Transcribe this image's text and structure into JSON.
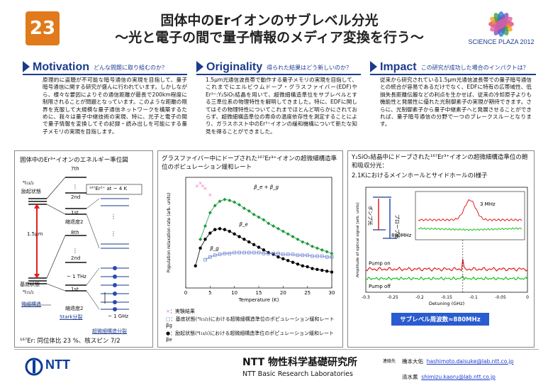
{
  "header": {
    "number": "23",
    "title_line1": "固体中のErイオンのサブレベル分光",
    "title_line2": "～光と電子の間で量子情報のメディア変換を行う～",
    "logo_text": "SCIENCE PLAZA 2012"
  },
  "sections": [
    {
      "heading": "Motivation",
      "question": "どんな問題に取り組むのか？",
      "body": "原理的に盗聴が不可能な暗号通信の実現を目指して、量子暗号通信に関する研究が盛んに行われています。しかしながら、様々な要因によりその通信距離が最長で200km程度に制限されることが問題となっています。このような距離の限界を克服して大規模な量子通信ネットワークを構築するために、我々は量子中継技術の実現、特に、光子と電子の間で量子情報を変換してその記録・読み出しを可能にする量子メモリの実現を目指します。"
    },
    {
      "heading": "Originality",
      "question": "得られた結果はどう新しいのか？",
      "body": "1.5μm光通信波長帯で動作する量子メモリの実現を目指して、これまでにエルビウムドープ・グラスファイバー(EDF)やEr³⁺:Y₂SiO₅結晶を用いて、超微細構造準位をサブレベルとする三準位系の物理特性を解明してきました。特に、EDFに関してはその物理特性についてこれまでほとんど明らかにされておらず、超微細構造準位の寿命の温度依存性を測定することにより、ガラスホスト中のEr³⁺イオンの緩和機構について新たな知見を得ることができました。"
    },
    {
      "heading": "Impact",
      "question": "この研究が成功した場合のインパクトは？",
      "body": "従来から研究されている1.5μm光通信波長帯での量子暗号通信との統合が容易であるだけでなく、EDFに特有の広帯域性、低損失長距離伝搬などの利点を生かせば、従来の冷却原子よりも機能性と発展性に優れた光制御素子の実現が期待できます。さらに、光制御素子から量子中継素子へと発展させることができれば、量子暗号通信の分野で一つのブレークスルーとなります。"
    }
  ],
  "panel_left": {
    "title": "固体中のEr³⁺イオンのエネルギー準位図",
    "labels": {
      "term_excited": "⁴I₁₃/₂",
      "excited": "励起状態",
      "wavelength": "1.5μm",
      "ground": "基底状態",
      "term_ground": "⁴I₁₅/₂",
      "fine": "微細構造",
      "l7th_top": "7th",
      "l2nd_top": "2nd",
      "l1st_top": "1st",
      "degen1": "縮退度2",
      "l8th": "8th",
      "l2nd_bot": "2nd",
      "thz": "~ 1 THz",
      "l1st_bot": "1st",
      "degen2": "縮退度2",
      "stark": "Stark分裂",
      "ghz": "~ 1 GHz",
      "isotope": "¹⁶⁷Er³⁺ at ~ 4 K",
      "hyperfine": "超微細構造分裂"
    },
    "footer": "¹⁶⁷Er: 同位体比 23 %、核スピン 7/2"
  },
  "panel_mid": {
    "title": "グラスファイバー中にドープされた¹⁶⁷Er³⁺イオンの超微細構造準位のポピュレーション緩和レート",
    "chart_data": {
      "type": "scatter",
      "xlabel": "Temperature (K)",
      "ylabel": "Population relaxation rate (arb. units)",
      "xlim": [
        0,
        30
      ],
      "x_ticks": [
        "0",
        "5",
        "10",
        "15",
        "20",
        "25",
        "30"
      ],
      "series": [
        {
          "name": "β_e + β_g",
          "color": "#1a9a3a",
          "values": [
            [
              3,
              0.55
            ],
            [
              4,
              0.7
            ],
            [
              5,
              0.85
            ],
            [
              6,
              0.93
            ],
            [
              7,
              0.98
            ],
            [
              8,
              1.0
            ],
            [
              9,
              0.99
            ],
            [
              10,
              0.97
            ],
            [
              11,
              0.94
            ],
            [
              12,
              0.9
            ],
            [
              13,
              0.87
            ],
            [
              14,
              0.83
            ],
            [
              15,
              0.8
            ],
            [
              16,
              0.77
            ],
            [
              17,
              0.73
            ],
            [
              18,
              0.7
            ],
            [
              19,
              0.67
            ],
            [
              20,
              0.64
            ],
            [
              21,
              0.61
            ],
            [
              22,
              0.58
            ],
            [
              23,
              0.55
            ],
            [
              24,
              0.52
            ],
            [
              25,
              0.5
            ],
            [
              26,
              0.47
            ],
            [
              27,
              0.45
            ],
            [
              28,
              0.43
            ],
            [
              29,
              0.41
            ],
            [
              30,
              0.39
            ]
          ]
        },
        {
          "name": "β_e",
          "color": "#000000",
          "values": [
            [
              2,
              0.25
            ],
            [
              3,
              0.45
            ],
            [
              4,
              0.55
            ],
            [
              5,
              0.62
            ],
            [
              6,
              0.66
            ],
            [
              7,
              0.67
            ],
            [
              8,
              0.66
            ],
            [
              9,
              0.64
            ],
            [
              10,
              0.61
            ],
            [
              11,
              0.58
            ],
            [
              12,
              0.55
            ],
            [
              13,
              0.52
            ],
            [
              14,
              0.49
            ],
            [
              15,
              0.46
            ],
            [
              16,
              0.43
            ],
            [
              17,
              0.4
            ],
            [
              18,
              0.38
            ],
            [
              19,
              0.35
            ],
            [
              20,
              0.33
            ],
            [
              21,
              0.31
            ],
            [
              22,
              0.29
            ],
            [
              23,
              0.27
            ],
            [
              24,
              0.25
            ],
            [
              25,
              0.24
            ],
            [
              26,
              0.22
            ],
            [
              27,
              0.21
            ],
            [
              28,
              0.2
            ],
            [
              29,
              0.19
            ],
            [
              30,
              0.18
            ]
          ]
        },
        {
          "name": "β_g",
          "color": "#6a7fd0",
          "values": [
            [
              4,
              0.32
            ],
            [
              5,
              0.35
            ],
            [
              6,
              0.37
            ],
            [
              7,
              0.38
            ],
            [
              8,
              0.39
            ],
            [
              9,
              0.39
            ],
            [
              10,
              0.4
            ],
            [
              11,
              0.4
            ],
            [
              12,
              0.4
            ],
            [
              13,
              0.4
            ],
            [
              14,
              0.4
            ],
            [
              15,
              0.4
            ],
            [
              16,
              0.39
            ],
            [
              17,
              0.39
            ],
            [
              18,
              0.39
            ],
            [
              19,
              0.39
            ],
            [
              20,
              0.38
            ],
            [
              21,
              0.38
            ],
            [
              22,
              0.38
            ],
            [
              23,
              0.37
            ],
            [
              24,
              0.37
            ],
            [
              25,
              0.37
            ],
            [
              26,
              0.36
            ],
            [
              27,
              0.36
            ],
            [
              28,
              0.36
            ],
            [
              29,
              0.35
            ],
            [
              30,
              0.35
            ]
          ]
        },
        {
          "name": "実験結果",
          "color": "#e070c0",
          "values": [
            [
              2.3,
              1.15
            ],
            [
              3,
              1.18
            ],
            [
              3.5,
              1.15
            ],
            [
              4,
              1.12
            ],
            [
              5,
              1.05
            ]
          ]
        }
      ]
    },
    "legend": [
      {
        "marker": "×",
        "text": "：実験結果"
      },
      {
        "marker": "□",
        "text": "：基底状態(⁴I₁₅/₂)における超微細構造準位のポピュレーション緩和レートβg"
      },
      {
        "marker": "●",
        "text": "：励起状態(⁴I₁₃/₂)における超微細構造準位のポピュレーション緩和レートβe"
      }
    ]
  },
  "panel_right": {
    "title": "Y₂SiO₅結晶中にドープされた¹⁶⁷Er³⁺イオンの超微細構造準位の飽和吸収分光：",
    "subtitle": "2.1KにおけるメインホールとサイドホールのІ様子",
    "chart_data": {
      "type": "line",
      "xlabel": "Detuning (GHz)",
      "ylabel": "Amplitude of optical signal (arb. units)",
      "xlim": [
        -0.3,
        0.05
      ],
      "x_ticks": [
        "-0.3",
        "-0.25",
        "-0.2",
        "-0.15",
        "-0.1",
        "-0.05",
        "0"
      ],
      "y_ticks": [
        "1.05",
        "1.10",
        "1.15",
        "1.20",
        "1.25"
      ],
      "series": [
        {
          "name": "Pump on",
          "color": "#e02020"
        },
        {
          "name": "Pump off",
          "color": "#20c020"
        }
      ]
    },
    "labels": {
      "probe": "プローブ光",
      "pump": "ポンプ光",
      "mhz880": "880MHz",
      "mhz3": "3 MHz",
      "pump_on": "Pump on",
      "pump_off": "Pump off",
      "result": "サブレベル周波数≈880MHz"
    }
  },
  "footer": {
    "lab_jp": "NTT 物性科学基礎研究所",
    "lab_en": "NTT Basic Research Laboratories",
    "contact_heading": "連絡先",
    "contacts": [
      {
        "name": "橋本大佑",
        "email": "hashimoto.daisuke@lab.ntt.co.jp"
      },
      {
        "name": "清水薫",
        "email": "shimizu.kaoru@lab.ntt.co.jp"
      }
    ],
    "brand": "NTT"
  }
}
